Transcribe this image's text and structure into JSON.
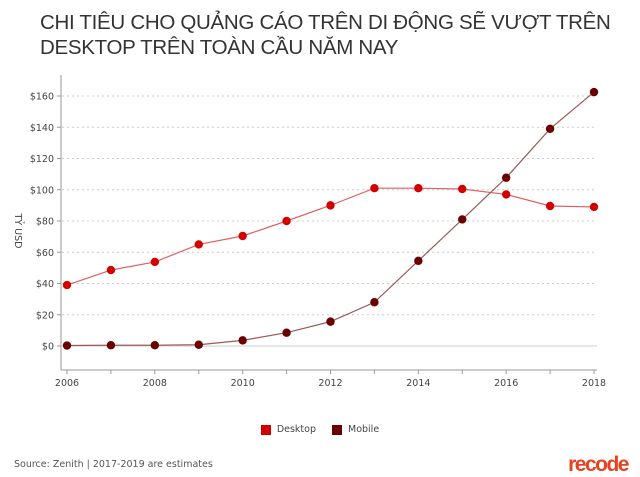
{
  "chart_data": {
    "type": "line",
    "title": "CHI TIÊU CHO QUẢNG CÁO TRÊN DI ĐỘNG SẼ VƯỢT TRÊN DESKTOP TRÊN TOÀN CẦU NĂM NAY",
    "xlabel": "",
    "ylabel": "TỶ USD",
    "x": [
      2006,
      2007,
      2008,
      2009,
      2010,
      2011,
      2012,
      2013,
      2014,
      2015,
      2016,
      2017,
      2018
    ],
    "x_ticks": [
      "2006",
      "2008",
      "2010",
      "2012",
      "2014",
      "2016",
      "2018"
    ],
    "y_ticks": [
      0,
      20,
      40,
      60,
      80,
      100,
      120,
      140,
      160
    ],
    "y_tick_labels": [
      "$0",
      "$20",
      "$40",
      "$60",
      "$80",
      "$100",
      "$120",
      "$140",
      "$160"
    ],
    "ylim": [
      -15,
      170
    ],
    "grid": true,
    "legend_placement": "bottom-center",
    "series": [
      {
        "name": "Desktop",
        "color": "#d40000",
        "values": [
          39,
          48.6,
          53.8,
          65,
          70.4,
          80,
          90,
          101,
          101,
          100.5,
          97,
          89.6,
          89
        ]
      },
      {
        "name": "Mobile",
        "color": "#6b0000",
        "values": [
          0.3,
          0.5,
          0.5,
          0.8,
          3.6,
          8.5,
          15.6,
          28,
          54.5,
          81,
          107.7,
          139,
          162.5
        ]
      }
    ]
  },
  "footer": {
    "source": "Source: Zenith | 2017-2019 are estimates",
    "logo": "recode"
  }
}
